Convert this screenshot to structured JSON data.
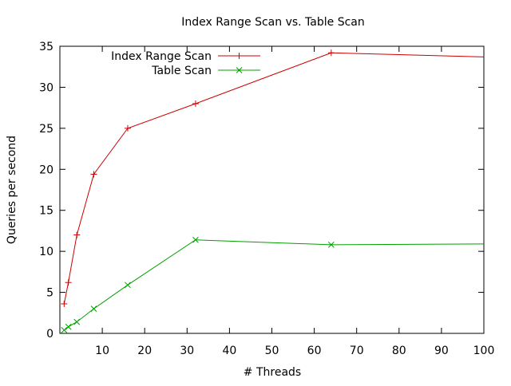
{
  "chart_data": {
    "type": "line",
    "title": "Index Range Scan vs. Table Scan",
    "xlabel": "# Threads",
    "ylabel": "Queries per second",
    "xlim": [
      0,
      100
    ],
    "ylim": [
      0,
      35
    ],
    "x_ticks": [
      10,
      20,
      30,
      40,
      50,
      60,
      70,
      80,
      90,
      100
    ],
    "y_ticks": [
      0,
      5,
      10,
      15,
      20,
      25,
      30,
      35
    ],
    "grid": false,
    "legend_position": "top-left",
    "series": [
      {
        "name": "Index Range Scan",
        "color": "#cc0000",
        "marker": "plus",
        "x": [
          1,
          2,
          4,
          8,
          16,
          32,
          64,
          100
        ],
        "y": [
          3.6,
          6.2,
          12.0,
          19.4,
          25.0,
          28.0,
          34.2,
          33.7
        ]
      },
      {
        "name": "Table Scan",
        "color": "#00a000",
        "marker": "cross",
        "x": [
          1,
          2,
          4,
          8,
          16,
          32,
          64,
          100
        ],
        "y": [
          0.4,
          0.8,
          1.4,
          3.0,
          5.9,
          11.4,
          10.8,
          10.9
        ]
      }
    ]
  }
}
